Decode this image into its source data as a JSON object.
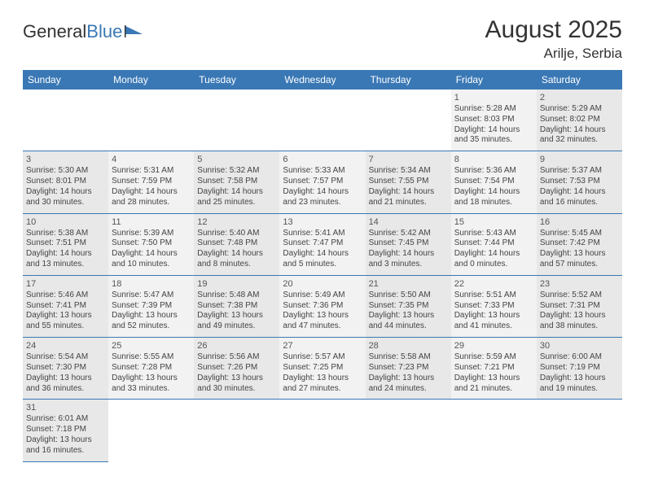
{
  "logo": {
    "part1": "General",
    "part2": "Blue"
  },
  "title": "August 2025",
  "location": "Arilje, Serbia",
  "colors": {
    "header_bg": "#3a78b5",
    "header_text": "#ffffff",
    "cell_bg_a": "#e8e8e8",
    "cell_bg_b": "#f2f2f2",
    "border": "#3a78b5",
    "text": "#444444"
  },
  "dayHeaders": [
    "Sunday",
    "Monday",
    "Tuesday",
    "Wednesday",
    "Thursday",
    "Friday",
    "Saturday"
  ],
  "weeks": [
    [
      null,
      null,
      null,
      null,
      null,
      {
        "n": "1",
        "sr": "Sunrise: 5:28 AM",
        "ss": "Sunset: 8:03 PM",
        "d1": "Daylight: 14 hours",
        "d2": "and 35 minutes."
      },
      {
        "n": "2",
        "sr": "Sunrise: 5:29 AM",
        "ss": "Sunset: 8:02 PM",
        "d1": "Daylight: 14 hours",
        "d2": "and 32 minutes."
      }
    ],
    [
      {
        "n": "3",
        "sr": "Sunrise: 5:30 AM",
        "ss": "Sunset: 8:01 PM",
        "d1": "Daylight: 14 hours",
        "d2": "and 30 minutes."
      },
      {
        "n": "4",
        "sr": "Sunrise: 5:31 AM",
        "ss": "Sunset: 7:59 PM",
        "d1": "Daylight: 14 hours",
        "d2": "and 28 minutes."
      },
      {
        "n": "5",
        "sr": "Sunrise: 5:32 AM",
        "ss": "Sunset: 7:58 PM",
        "d1": "Daylight: 14 hours",
        "d2": "and 25 minutes."
      },
      {
        "n": "6",
        "sr": "Sunrise: 5:33 AM",
        "ss": "Sunset: 7:57 PM",
        "d1": "Daylight: 14 hours",
        "d2": "and 23 minutes."
      },
      {
        "n": "7",
        "sr": "Sunrise: 5:34 AM",
        "ss": "Sunset: 7:55 PM",
        "d1": "Daylight: 14 hours",
        "d2": "and 21 minutes."
      },
      {
        "n": "8",
        "sr": "Sunrise: 5:36 AM",
        "ss": "Sunset: 7:54 PM",
        "d1": "Daylight: 14 hours",
        "d2": "and 18 minutes."
      },
      {
        "n": "9",
        "sr": "Sunrise: 5:37 AM",
        "ss": "Sunset: 7:53 PM",
        "d1": "Daylight: 14 hours",
        "d2": "and 16 minutes."
      }
    ],
    [
      {
        "n": "10",
        "sr": "Sunrise: 5:38 AM",
        "ss": "Sunset: 7:51 PM",
        "d1": "Daylight: 14 hours",
        "d2": "and 13 minutes."
      },
      {
        "n": "11",
        "sr": "Sunrise: 5:39 AM",
        "ss": "Sunset: 7:50 PM",
        "d1": "Daylight: 14 hours",
        "d2": "and 10 minutes."
      },
      {
        "n": "12",
        "sr": "Sunrise: 5:40 AM",
        "ss": "Sunset: 7:48 PM",
        "d1": "Daylight: 14 hours",
        "d2": "and 8 minutes."
      },
      {
        "n": "13",
        "sr": "Sunrise: 5:41 AM",
        "ss": "Sunset: 7:47 PM",
        "d1": "Daylight: 14 hours",
        "d2": "and 5 minutes."
      },
      {
        "n": "14",
        "sr": "Sunrise: 5:42 AM",
        "ss": "Sunset: 7:45 PM",
        "d1": "Daylight: 14 hours",
        "d2": "and 3 minutes."
      },
      {
        "n": "15",
        "sr": "Sunrise: 5:43 AM",
        "ss": "Sunset: 7:44 PM",
        "d1": "Daylight: 14 hours",
        "d2": "and 0 minutes."
      },
      {
        "n": "16",
        "sr": "Sunrise: 5:45 AM",
        "ss": "Sunset: 7:42 PM",
        "d1": "Daylight: 13 hours",
        "d2": "and 57 minutes."
      }
    ],
    [
      {
        "n": "17",
        "sr": "Sunrise: 5:46 AM",
        "ss": "Sunset: 7:41 PM",
        "d1": "Daylight: 13 hours",
        "d2": "and 55 minutes."
      },
      {
        "n": "18",
        "sr": "Sunrise: 5:47 AM",
        "ss": "Sunset: 7:39 PM",
        "d1": "Daylight: 13 hours",
        "d2": "and 52 minutes."
      },
      {
        "n": "19",
        "sr": "Sunrise: 5:48 AM",
        "ss": "Sunset: 7:38 PM",
        "d1": "Daylight: 13 hours",
        "d2": "and 49 minutes."
      },
      {
        "n": "20",
        "sr": "Sunrise: 5:49 AM",
        "ss": "Sunset: 7:36 PM",
        "d1": "Daylight: 13 hours",
        "d2": "and 47 minutes."
      },
      {
        "n": "21",
        "sr": "Sunrise: 5:50 AM",
        "ss": "Sunset: 7:35 PM",
        "d1": "Daylight: 13 hours",
        "d2": "and 44 minutes."
      },
      {
        "n": "22",
        "sr": "Sunrise: 5:51 AM",
        "ss": "Sunset: 7:33 PM",
        "d1": "Daylight: 13 hours",
        "d2": "and 41 minutes."
      },
      {
        "n": "23",
        "sr": "Sunrise: 5:52 AM",
        "ss": "Sunset: 7:31 PM",
        "d1": "Daylight: 13 hours",
        "d2": "and 38 minutes."
      }
    ],
    [
      {
        "n": "24",
        "sr": "Sunrise: 5:54 AM",
        "ss": "Sunset: 7:30 PM",
        "d1": "Daylight: 13 hours",
        "d2": "and 36 minutes."
      },
      {
        "n": "25",
        "sr": "Sunrise: 5:55 AM",
        "ss": "Sunset: 7:28 PM",
        "d1": "Daylight: 13 hours",
        "d2": "and 33 minutes."
      },
      {
        "n": "26",
        "sr": "Sunrise: 5:56 AM",
        "ss": "Sunset: 7:26 PM",
        "d1": "Daylight: 13 hours",
        "d2": "and 30 minutes."
      },
      {
        "n": "27",
        "sr": "Sunrise: 5:57 AM",
        "ss": "Sunset: 7:25 PM",
        "d1": "Daylight: 13 hours",
        "d2": "and 27 minutes."
      },
      {
        "n": "28",
        "sr": "Sunrise: 5:58 AM",
        "ss": "Sunset: 7:23 PM",
        "d1": "Daylight: 13 hours",
        "d2": "and 24 minutes."
      },
      {
        "n": "29",
        "sr": "Sunrise: 5:59 AM",
        "ss": "Sunset: 7:21 PM",
        "d1": "Daylight: 13 hours",
        "d2": "and 21 minutes."
      },
      {
        "n": "30",
        "sr": "Sunrise: 6:00 AM",
        "ss": "Sunset: 7:19 PM",
        "d1": "Daylight: 13 hours",
        "d2": "and 19 minutes."
      }
    ],
    [
      {
        "n": "31",
        "sr": "Sunrise: 6:01 AM",
        "ss": "Sunset: 7:18 PM",
        "d1": "Daylight: 13 hours",
        "d2": "and 16 minutes."
      },
      null,
      null,
      null,
      null,
      null,
      null
    ]
  ]
}
